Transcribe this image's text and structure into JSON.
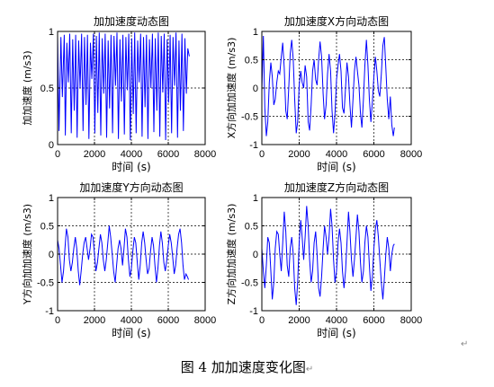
{
  "figure": {
    "caption": "图 4  加加速度变化图",
    "pmark": "↵"
  },
  "chart_data": [
    {
      "type": "line",
      "title": "加加速度动态图",
      "xlabel": "时间 (s)",
      "ylabel": "加加速度 (m/s3)",
      "xlim": [
        0,
        8000
      ],
      "ylim": [
        0,
        1
      ],
      "xticks": [
        0,
        2000,
        4000,
        6000,
        8000
      ],
      "yticks": [
        0,
        0.5,
        1
      ],
      "grid": true,
      "color": "#0000ff",
      "series": [
        {
          "x": [
            0,
            80,
            180,
            260,
            360,
            420,
            500,
            580,
            660,
            740,
            820,
            900,
            980,
            1060,
            1140,
            1220,
            1300,
            1380,
            1460,
            1540,
            1620,
            1700,
            1780,
            1860,
            1940,
            2020,
            2100,
            2180,
            2260,
            2340,
            2420,
            2500,
            2580,
            2660,
            2740,
            2820,
            2900,
            2980,
            3060,
            3140,
            3220,
            3300,
            3380,
            3460,
            3540,
            3620,
            3700,
            3780,
            3860,
            3940,
            4020,
            4100,
            4180,
            4260,
            4340,
            4420,
            4500,
            4580,
            4660,
            4740,
            4820,
            4900,
            4980,
            5060,
            5140,
            5220,
            5300,
            5380,
            5460,
            5540,
            5620,
            5700,
            5780,
            5860,
            5940,
            6020,
            6100,
            6180,
            6260,
            6340,
            6420,
            6500,
            6580,
            6660,
            6740,
            6820,
            6900,
            6980,
            7060,
            7140
          ],
          "y": [
            0.96,
            0.12,
            0.95,
            0.42,
            0.97,
            0.08,
            0.9,
            0.55,
            0.98,
            0.1,
            0.93,
            0.3,
            0.97,
            0.06,
            0.92,
            0.5,
            0.98,
            0.12,
            0.95,
            0.35,
            0.97,
            0.05,
            0.9,
            0.58,
            0.98,
            0.1,
            0.96,
            0.28,
            0.99,
            0.08,
            0.94,
            0.45,
            0.98,
            0.06,
            0.92,
            0.32,
            0.97,
            0.1,
            0.96,
            0.52,
            0.99,
            0.05,
            0.93,
            0.38,
            0.97,
            0.09,
            0.95,
            0.48,
            0.98,
            0.04,
            0.94,
            0.27,
            0.99,
            0.1,
            0.92,
            0.55,
            0.98,
            0.07,
            0.95,
            0.33,
            0.97,
            0.05,
            0.93,
            0.5,
            0.98,
            0.11,
            0.94,
            0.3,
            0.99,
            0.07,
            0.96,
            0.46,
            0.98,
            0.04,
            0.93,
            0.37,
            0.97,
            0.1,
            0.95,
            0.52,
            0.99,
            0.06,
            0.92,
            0.3,
            0.98,
            0.12,
            0.94,
            0.45,
            0.85,
            0.78
          ]
        }
      ]
    },
    {
      "type": "line",
      "title": "加加速度X方向动态图",
      "xlabel": "时间 (s)",
      "ylabel": "X方向加加速度 (m/s3)",
      "xlim": [
        0,
        8000
      ],
      "ylim": [
        -1,
        1
      ],
      "xticks": [
        0,
        2000,
        4000,
        6000,
        8000
      ],
      "yticks": [
        -1,
        -0.5,
        0,
        0.5,
        1
      ],
      "grid": true,
      "color": "#0000ff",
      "series": [
        {
          "x": [
            0,
            80,
            160,
            240,
            320,
            400,
            480,
            560,
            640,
            720,
            800,
            880,
            960,
            1040,
            1120,
            1200,
            1280,
            1360,
            1440,
            1520,
            1600,
            1680,
            1760,
            1840,
            1920,
            2000,
            2080,
            2160,
            2240,
            2320,
            2400,
            2480,
            2560,
            2640,
            2720,
            2800,
            2880,
            2960,
            3040,
            3120,
            3200,
            3280,
            3360,
            3440,
            3520,
            3600,
            3680,
            3760,
            3840,
            3920,
            4000,
            4080,
            4160,
            4240,
            4320,
            4400,
            4480,
            4560,
            4640,
            4720,
            4800,
            4880,
            4960,
            5040,
            5120,
            5200,
            5280,
            5360,
            5440,
            5520,
            5600,
            5680,
            5760,
            5840,
            5920,
            6000,
            6080,
            6160,
            6240,
            6320,
            6400,
            6480,
            6560,
            6640,
            6720,
            6800,
            6880,
            6960,
            7040,
            7100
          ],
          "y": [
            -0.05,
            0.92,
            -0.35,
            -0.85,
            -0.6,
            0.1,
            0.45,
            0.2,
            -0.3,
            -0.2,
            0.1,
            0.3,
            0.25,
            0.55,
            0.8,
            0.35,
            -0.4,
            -0.55,
            0.0,
            0.6,
            0.85,
            0.5,
            -0.2,
            -0.8,
            -0.6,
            0.05,
            0.3,
            0.1,
            0.0,
            0.4,
            0.2,
            -0.6,
            -0.75,
            -0.3,
            0.3,
            0.5,
            0.15,
            0.05,
            0.5,
            0.82,
            0.55,
            -0.1,
            -0.55,
            -0.3,
            0.25,
            0.6,
            0.3,
            -0.4,
            -0.8,
            -0.45,
            0.15,
            0.4,
            0.6,
            0.3,
            -0.35,
            -0.45,
            0.0,
            0.45,
            0.2,
            -0.3,
            -0.7,
            -0.2,
            0.3,
            0.55,
            0.3,
            0.05,
            -0.45,
            -0.7,
            -0.2,
            0.4,
            0.85,
            0.4,
            -0.2,
            -0.6,
            -0.25,
            0.2,
            0.55,
            0.3,
            -0.05,
            -0.15,
            0.25,
            0.75,
            0.9,
            0.35,
            -0.2,
            -0.55,
            -0.15,
            -0.65,
            -0.85,
            -0.7
          ]
        }
      ]
    },
    {
      "type": "line",
      "title": "加加速度Y方向动态图",
      "xlabel": "时间 (s)",
      "ylabel": "Y方向加加速度 (m/s3)",
      "xlim": [
        0,
        8000
      ],
      "ylim": [
        -1,
        1
      ],
      "xticks": [
        0,
        2000,
        4000,
        6000,
        8000
      ],
      "yticks": [
        -1,
        -0.5,
        0,
        0.5,
        1
      ],
      "grid": true,
      "color": "#0000ff",
      "series": [
        {
          "x": [
            0,
            80,
            160,
            240,
            320,
            400,
            480,
            560,
            640,
            720,
            800,
            880,
            960,
            1040,
            1120,
            1200,
            1280,
            1360,
            1440,
            1520,
            1600,
            1680,
            1760,
            1840,
            1920,
            2000,
            2080,
            2160,
            2240,
            2320,
            2400,
            2480,
            2560,
            2640,
            2720,
            2800,
            2880,
            2960,
            3040,
            3120,
            3200,
            3280,
            3360,
            3440,
            3520,
            3600,
            3680,
            3760,
            3840,
            3920,
            4000,
            4080,
            4160,
            4240,
            4320,
            4400,
            4480,
            4560,
            4640,
            4720,
            4800,
            4880,
            4960,
            5040,
            5120,
            5200,
            5280,
            5360,
            5440,
            5520,
            5600,
            5680,
            5760,
            5840,
            5920,
            6000,
            6080,
            6160,
            6240,
            6320,
            6400,
            6480,
            6560,
            6640,
            6720,
            6800,
            6880,
            6960,
            7040,
            7100
          ],
          "y": [
            0.25,
            0.1,
            -0.2,
            -0.5,
            -0.3,
            0.1,
            0.45,
            0.3,
            -0.1,
            -0.3,
            -0.15,
            0.1,
            0.3,
            0.1,
            -0.3,
            -0.55,
            -0.3,
            0.0,
            0.2,
            0.3,
            0.1,
            -0.1,
            0.1,
            0.35,
            0.3,
            0.0,
            -0.3,
            -0.15,
            0.1,
            0.35,
            0.2,
            -0.1,
            -0.3,
            -0.1,
            0.2,
            0.5,
            0.3,
            0.0,
            -0.3,
            -0.5,
            -0.2,
            0.1,
            0.25,
            0.1,
            -0.2,
            0.1,
            0.45,
            0.3,
            -0.1,
            -0.4,
            -0.25,
            0.05,
            0.3,
            0.2,
            -0.15,
            -0.45,
            -0.2,
            0.2,
            0.4,
            0.2,
            -0.1,
            -0.35,
            -0.25,
            0.05,
            0.3,
            0.15,
            -0.2,
            -0.5,
            -0.25,
            0.15,
            0.4,
            0.2,
            -0.15,
            -0.3,
            -0.1,
            0.15,
            0.35,
            0.2,
            -0.05,
            -0.35,
            -0.2,
            0.1,
            0.35,
            0.45,
            0.2,
            -0.2,
            -0.45,
            -0.35,
            -0.4,
            -0.45
          ]
        }
      ]
    },
    {
      "type": "line",
      "title": "加加速度Z方向动态图",
      "xlabel": "时间 (s)",
      "ylabel": "Z方向加加速度 (m/s3)",
      "xlim": [
        0,
        8000
      ],
      "ylim": [
        -1,
        1
      ],
      "xticks": [
        0,
        2000,
        4000,
        6000,
        8000
      ],
      "yticks": [
        -1,
        -0.5,
        0,
        0.5,
        1
      ],
      "grid": true,
      "color": "#0000ff",
      "series": [
        {
          "x": [
            0,
            80,
            160,
            240,
            320,
            400,
            480,
            560,
            640,
            720,
            800,
            880,
            960,
            1040,
            1120,
            1200,
            1280,
            1360,
            1440,
            1520,
            1600,
            1680,
            1760,
            1840,
            1920,
            2000,
            2080,
            2160,
            2240,
            2320,
            2400,
            2480,
            2560,
            2640,
            2720,
            2800,
            2880,
            2960,
            3040,
            3120,
            3200,
            3280,
            3360,
            3440,
            3520,
            3600,
            3680,
            3760,
            3840,
            3920,
            4000,
            4080,
            4160,
            4240,
            4320,
            4400,
            4480,
            4560,
            4640,
            4720,
            4800,
            4880,
            4960,
            5040,
            5120,
            5200,
            5280,
            5360,
            5440,
            5520,
            5600,
            5680,
            5760,
            5840,
            5920,
            6000,
            6080,
            6160,
            6240,
            6320,
            6400,
            6480,
            6560,
            6640,
            6720,
            6800,
            6880,
            6960,
            7040,
            7100
          ],
          "y": [
            0.1,
            -0.3,
            -0.6,
            -0.2,
            0.3,
            0.2,
            -0.3,
            -0.8,
            -0.5,
            0.1,
            0.4,
            0.35,
            0.0,
            -0.3,
            0.2,
            0.75,
            0.4,
            -0.2,
            -0.4,
            0.1,
            0.3,
            0.0,
            -0.6,
            -0.9,
            -0.5,
            0.2,
            0.6,
            0.3,
            -0.1,
            0.3,
            0.85,
            0.5,
            -0.1,
            -0.5,
            -0.3,
            0.2,
            0.4,
            0.0,
            -0.6,
            -0.75,
            -0.4,
            0.1,
            0.5,
            0.3,
            0.0,
            0.3,
            0.8,
            0.5,
            -0.1,
            -0.5,
            -0.3,
            0.2,
            0.45,
            0.2,
            -0.3,
            -0.6,
            -0.3,
            0.2,
            0.75,
            0.4,
            -0.1,
            -0.4,
            -0.1,
            0.3,
            0.7,
            0.4,
            -0.15,
            -0.5,
            -0.3,
            0.2,
            0.5,
            0.3,
            -0.2,
            -0.65,
            -0.4,
            0.1,
            0.45,
            0.6,
            0.3,
            -0.1,
            -0.5,
            -0.8,
            -0.45,
            0.0,
            0.3,
            0.1,
            -0.3,
            0.0,
            0.15,
            0.18
          ]
        }
      ]
    }
  ]
}
